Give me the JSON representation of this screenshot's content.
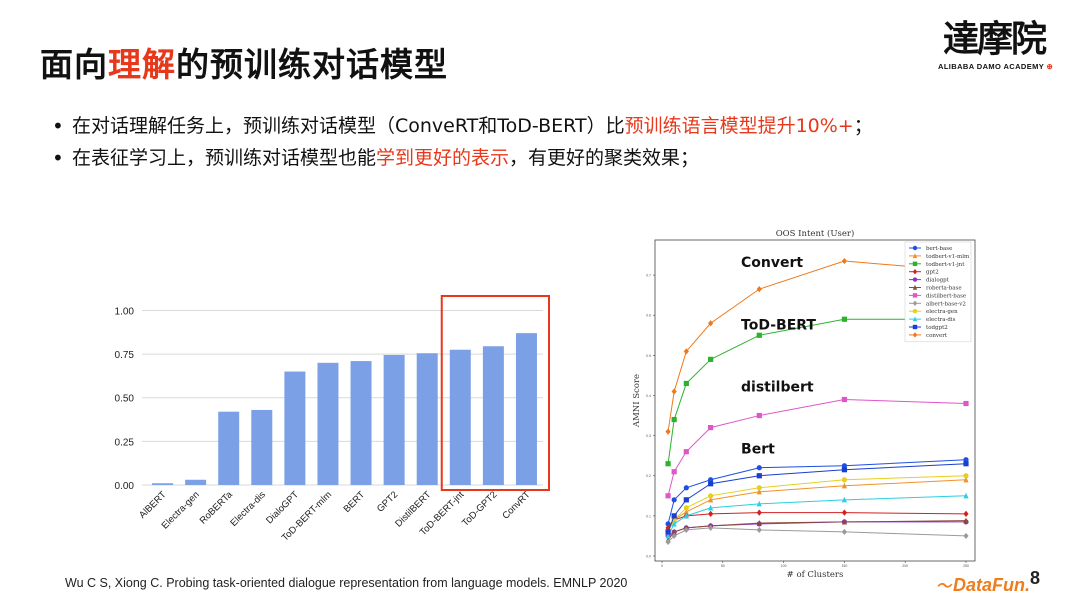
{
  "slide": {
    "title": {
      "pre": "面向",
      "highlight": "理解",
      "post": "的预训练对话模型"
    },
    "logo": {
      "cn": "達摩院",
      "en": "ALIBABA DAMO ACADEMY",
      "seal": "⊕"
    },
    "bullets": [
      {
        "marker": "•",
        "parts": [
          {
            "text": "在对话理解任务上，预训练对话模型（ConveRT和ToD-BERT）比",
            "red": false
          },
          {
            "text": "预训练语言模型提升10%+",
            "red": true
          },
          {
            "text": "；",
            "red": false
          }
        ]
      },
      {
        "marker": "•",
        "parts": [
          {
            "text": "在表征学习上，预训练对话模型也能",
            "red": false
          },
          {
            "text": "学到更好的表示",
            "red": true
          },
          {
            "text": "，有更好的聚类效果；",
            "red": false
          }
        ]
      }
    ],
    "reference": "Wu C S, Xiong C. Probing task-oriented dialogue representation from language models. EMNLP 2020",
    "brand": "DataFun.",
    "brand_mark": "〜",
    "page_number": "8"
  },
  "chart_data": [
    {
      "type": "bar",
      "categories": [
        "AlBERT",
        "Electra-gen",
        "RoBERTa",
        "Electra-dis",
        "DialoGPT",
        "ToD-BERT-mlm",
        "BERT",
        "GPT2",
        "DistilBERT",
        "ToD-BERT-jnt",
        "ToD-GPT2",
        "ConvRT"
      ],
      "values": [
        0.01,
        0.03,
        0.42,
        0.43,
        0.65,
        0.7,
        0.71,
        0.745,
        0.755,
        0.775,
        0.795,
        0.87
      ],
      "yticks": [
        "0.00",
        "0.25",
        "0.50",
        "0.75",
        "1.00"
      ],
      "ylim": [
        0,
        1.1
      ],
      "highlight_range": [
        9,
        11
      ],
      "bar_color": "#7ca0e6",
      "highlight_color": "#e8381b"
    },
    {
      "type": "line",
      "title": "OOS Intent (User)",
      "xlabel": "# of Clusters",
      "ylabel": "AMNI Score",
      "x": [
        5,
        10,
        20,
        40,
        80,
        150,
        250
      ],
      "xticks": [
        "0",
        "50",
        "100",
        "150",
        "200",
        "250"
      ],
      "yticks": [
        "0.0",
        "0.1",
        "0.2",
        "0.3",
        "0.4",
        "0.5",
        "0.6",
        "0.7"
      ],
      "xlim": [
        0,
        250
      ],
      "ylim": [
        0,
        0.78
      ],
      "series": [
        {
          "name": "bert-base",
          "color": "#1f4fe0",
          "marker": "o",
          "values": [
            0.08,
            0.14,
            0.17,
            0.19,
            0.22,
            0.225,
            0.24
          ]
        },
        {
          "name": "todbert-v1-mlm",
          "color": "#f0922b",
          "marker": "^",
          "values": [
            0.07,
            0.09,
            0.11,
            0.14,
            0.16,
            0.175,
            0.19
          ]
        },
        {
          "name": "todbert-v1-jnt",
          "color": "#2cb32c",
          "marker": "s",
          "values": [
            0.23,
            0.34,
            0.43,
            0.49,
            0.55,
            0.59,
            0.59
          ]
        },
        {
          "name": "gpt2",
          "color": "#d42020",
          "marker": "D",
          "values": [
            0.07,
            0.09,
            0.1,
            0.105,
            0.108,
            0.108,
            0.105
          ]
        },
        {
          "name": "dialogpt",
          "color": "#8a35c8",
          "marker": "o",
          "values": [
            0.05,
            0.06,
            0.07,
            0.075,
            0.08,
            0.085,
            0.085
          ]
        },
        {
          "name": "roberta-base",
          "color": "#8b4a3a",
          "marker": "^",
          "values": [
            0.04,
            0.06,
            0.07,
            0.075,
            0.082,
            0.085,
            0.088
          ]
        },
        {
          "name": "distilbert-base",
          "color": "#e056c8",
          "marker": "s",
          "values": [
            0.15,
            0.21,
            0.26,
            0.32,
            0.35,
            0.39,
            0.38
          ]
        },
        {
          "name": "albert-base-v2",
          "color": "#9a9a9a",
          "marker": "D",
          "values": [
            0.035,
            0.05,
            0.065,
            0.07,
            0.065,
            0.06,
            0.05
          ]
        },
        {
          "name": "electra-gen",
          "color": "#e6d01e",
          "marker": "o",
          "values": [
            0.06,
            0.09,
            0.12,
            0.15,
            0.17,
            0.19,
            0.2
          ]
        },
        {
          "name": "electra-dis",
          "color": "#2ccfe0",
          "marker": "^",
          "values": [
            0.05,
            0.08,
            0.1,
            0.12,
            0.13,
            0.14,
            0.15
          ]
        },
        {
          "name": "todgpt2",
          "color": "#1a3fd0",
          "marker": "s",
          "values": [
            0.06,
            0.1,
            0.14,
            0.18,
            0.2,
            0.215,
            0.23
          ]
        },
        {
          "name": "convert",
          "color": "#f07818",
          "marker": "D",
          "values": [
            0.31,
            0.41,
            0.51,
            0.58,
            0.665,
            0.735,
            0.71
          ]
        }
      ],
      "annotations": [
        {
          "text": "Convert",
          "x": 65,
          "y": 0.72
        },
        {
          "text": "ToD-BERT",
          "x": 65,
          "y": 0.565
        },
        {
          "text": "distilbert",
          "x": 65,
          "y": 0.41
        },
        {
          "text": "Bert",
          "x": 65,
          "y": 0.255
        }
      ]
    }
  ]
}
